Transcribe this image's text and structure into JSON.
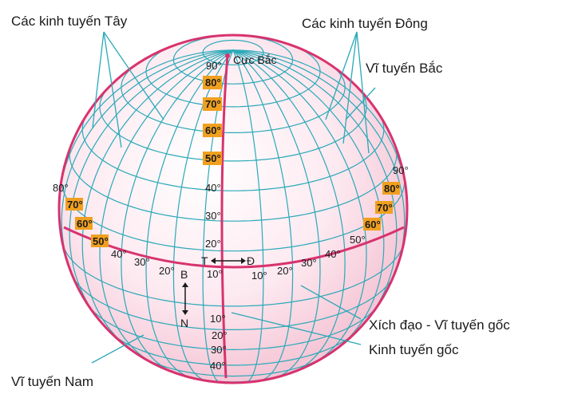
{
  "labels": {
    "west_meridians": "Các kinh tuyến Tây",
    "east_meridians": "Các kinh tuyến Đông",
    "north_parallels": "Vĩ tuyến Bắc",
    "north_pole": "Cực Bắc",
    "equator": "Xích đạo - Vĩ tuyến gốc",
    "prime_meridian": "Kinh tuyến gốc",
    "south_parallels": "Vĩ tuyến Nam"
  },
  "directions": {
    "west": "T",
    "east": "Đ",
    "north": "B",
    "south": "N"
  },
  "center_lat_labels": [
    "90°",
    "80°",
    "70°",
    "60°",
    "50°",
    "40°",
    "30°",
    "20°",
    "10°"
  ],
  "right_lat_labels": [
    "90°",
    "80°",
    "70°",
    "60°",
    "50°"
  ],
  "left_lat_labels": [
    "80°",
    "70°",
    "60°",
    "50°"
  ],
  "west_long_labels": [
    "40°",
    "30°",
    "20°"
  ],
  "east_long_labels": [
    "10°",
    "20°",
    "30°",
    "40°"
  ],
  "south_lat_labels": [
    "10°",
    "20°",
    "30°",
    "40°"
  ],
  "colors": {
    "grid": "#2aa9b8",
    "outline": "#d8336e",
    "globe_fill": "#fde8ef",
    "label_highlight": "#f0a020"
  }
}
